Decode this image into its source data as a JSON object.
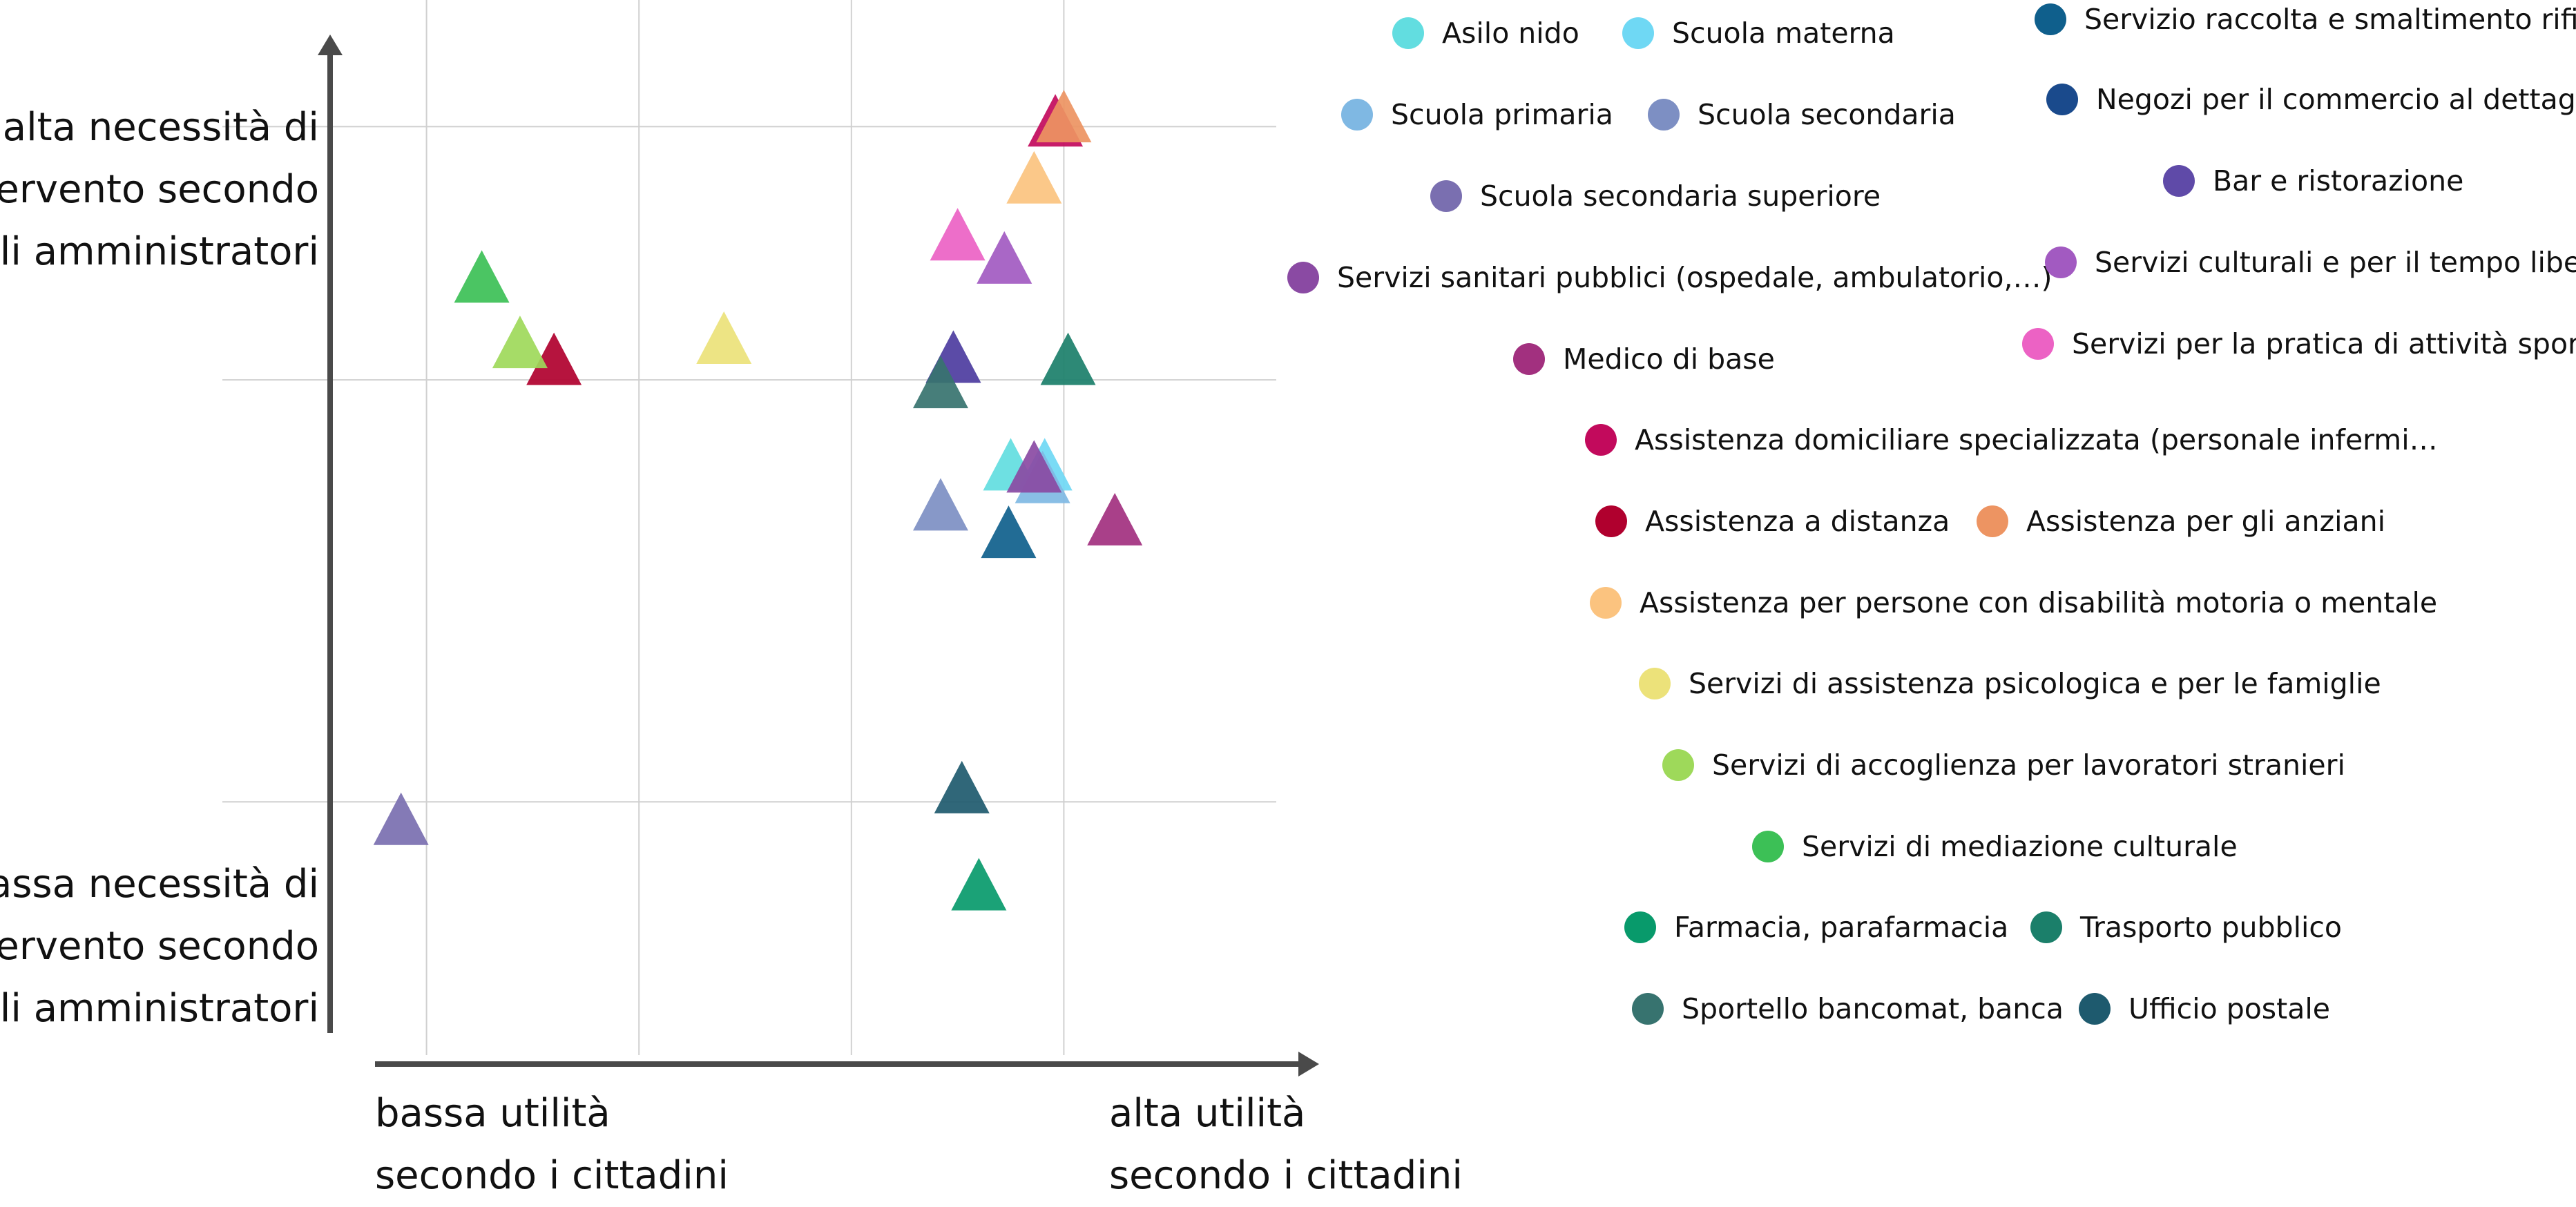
{
  "chart_data": {
    "type": "scatter",
    "marker": "triangle",
    "grid": true,
    "legend_placement": "right",
    "axis_labels": {
      "y_high": [
        "alta necessità di",
        "intervento secondo",
        "gli amministratori"
      ],
      "y_low": [
        "bassa necessità di",
        "intervento secondo",
        "gli amministratori"
      ],
      "x_low": [
        "bassa utilità",
        "secondo i cittadini"
      ],
      "x_high": [
        "alta utilità",
        "secondo i cittadini"
      ]
    },
    "series": [
      {
        "name": "Asilo nido",
        "color": "#62dde0",
        "x": 3.75,
        "y": 2.77
      },
      {
        "name": "Scuola materna",
        "color": "#6fd8f4",
        "x": 3.91,
        "y": 2.77
      },
      {
        "name": "Scuola primaria",
        "color": "#7fb8e3",
        "x": 3.9,
        "y": 2.71
      },
      {
        "name": "Scuola secondaria",
        "color": "#7d8fc3",
        "x": 3.42,
        "y": 2.58
      },
      {
        "name": "Scuola secondaria superiore",
        "color": "#7a6fb0",
        "x": 0.88,
        "y": 1.09
      },
      {
        "name": "Servizio raccolta e smaltimento rifiuti",
        "color": "#0f5f8c",
        "x": 3.74,
        "y": 2.45
      },
      {
        "name": "Negozi per il commercio al dettaglio",
        "color": "#1a4a8c",
        "x": 3.48,
        "y": 3.28
      },
      {
        "name": "Bar e ristorazione",
        "color": "#5f4aa8",
        "x": 3.48,
        "y": 3.28
      },
      {
        "name": "Servizi sanitari pubblici (ospedale, ambulatorio,…)",
        "color": "#8a4aa3",
        "x": 3.86,
        "y": 2.76
      },
      {
        "name": "Servizi culturali e per il tempo libero",
        "color": "#a25ac1",
        "x": 3.72,
        "y": 3.75
      },
      {
        "name": "Medico di base",
        "color": "#a2307f",
        "x": 4.24,
        "y": 2.51
      },
      {
        "name": "Servizi per la pratica di attività sportiva",
        "color": "#ec62c4",
        "x": 3.5,
        "y": 3.86
      },
      {
        "name": "Assistenza domiciliare specializzata (personale infermi…",
        "color": "#c20a5c",
        "x": 3.96,
        "y": 4.4
      },
      {
        "name": "Assistenza a distanza",
        "color": "#b0002e",
        "x": 1.6,
        "y": 3.27
      },
      {
        "name": "Assistenza per gli anziani",
        "color": "#ed9462",
        "x": 4.0,
        "y": 4.42
      },
      {
        "name": "Assistenza per persone con disabilità motoria o mentale",
        "color": "#fbc37f",
        "x": 3.86,
        "y": 4.13
      },
      {
        "name": "Servizi di assistenza psicologica e per le famiglie",
        "color": "#ece27a",
        "x": 2.4,
        "y": 3.37
      },
      {
        "name": "Servizi di accoglienza per lavoratori stranieri",
        "color": "#9ed95a",
        "x": 1.44,
        "y": 3.35
      },
      {
        "name": "Servizi di mediazione culturale",
        "color": "#3cc056",
        "x": 1.26,
        "y": 3.66
      },
      {
        "name": "Farmacia, parafarmacia",
        "color": "#089a6b",
        "x": 3.6,
        "y": 0.78
      },
      {
        "name": "Trasporto pubblico",
        "color": "#1b7f6a",
        "x": 4.02,
        "y": 3.27
      },
      {
        "name": "Sportello bancomat, banca",
        "color": "#37736f",
        "x": 3.42,
        "y": 3.16
      },
      {
        "name": "Ufficio postale",
        "color": "#1e5a6e",
        "x": 3.52,
        "y": 1.24
      }
    ]
  }
}
